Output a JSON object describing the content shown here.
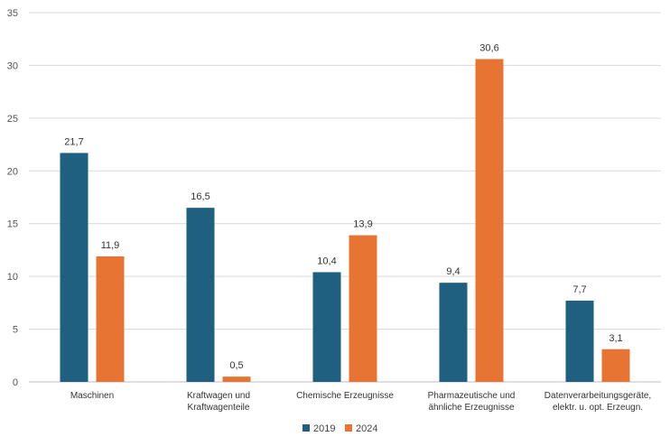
{
  "chart_data": {
    "type": "bar",
    "categories": [
      [
        "Maschinen"
      ],
      [
        "Kraftwagen und",
        "Kraftwagenteile"
      ],
      [
        "Chemische Erzeugnisse"
      ],
      [
        "Pharmazeutische und",
        "ähnliche Erzeugnisse"
      ],
      [
        "Datenverarbeitungsgeräte,",
        "elektr. u. opt. Erzeugn."
      ]
    ],
    "series": [
      {
        "name": "2019",
        "color": "#1f5f80",
        "values": [
          21.7,
          16.5,
          10.4,
          9.4,
          7.7
        ],
        "labels": [
          "21,7",
          "16,5",
          "10,4",
          "9,4",
          "7,7"
        ]
      },
      {
        "name": "2024",
        "color": "#e87434",
        "values": [
          11.9,
          0.5,
          13.9,
          30.6,
          3.1
        ],
        "labels": [
          "11,9",
          "0,5",
          "13,9",
          "30,6",
          "3,1"
        ]
      }
    ],
    "title": "",
    "xlabel": "",
    "ylabel": "",
    "ylim": [
      0,
      35
    ],
    "yticks": [
      0,
      5,
      10,
      15,
      20,
      25,
      30,
      35
    ],
    "grid": true,
    "legend_position": "bottom-center"
  }
}
